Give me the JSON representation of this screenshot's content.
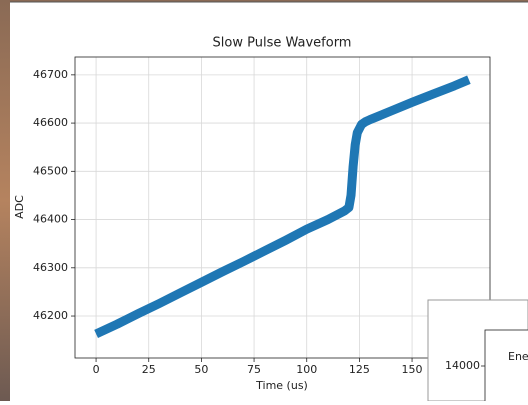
{
  "chart_data": {
    "type": "line",
    "title": "Slow Pulse Waveform",
    "xlabel": "Time (us)",
    "ylabel": "ADC",
    "x": [
      0,
      10,
      20,
      30,
      40,
      50,
      60,
      70,
      80,
      90,
      100,
      110,
      118,
      120,
      121,
      122,
      123,
      124,
      126,
      128,
      130,
      140,
      150,
      160,
      170,
      177
    ],
    "series": [
      {
        "name": "ADC",
        "color": "#1f77b4",
        "values": [
          46163,
          46183,
          46205,
          46226,
          46248,
          46270,
          46292,
          46313,
          46335,
          46357,
          46380,
          46400,
          46418,
          46425,
          46450,
          46510,
          46555,
          46580,
          46597,
          46603,
          46607,
          46625,
          46643,
          46660,
          46677,
          46690
        ]
      }
    ],
    "xlim": [
      -10,
      187
    ],
    "ylim": [
      46113,
      46737
    ],
    "xticks": [
      0,
      25,
      50,
      75,
      100,
      125,
      150
    ],
    "yticks": [
      46200,
      46300,
      46400,
      46500,
      46600,
      46700
    ],
    "grid": true
  },
  "overlay_window": {
    "yticks": [
      14000
    ],
    "legend_text": "Ene"
  }
}
